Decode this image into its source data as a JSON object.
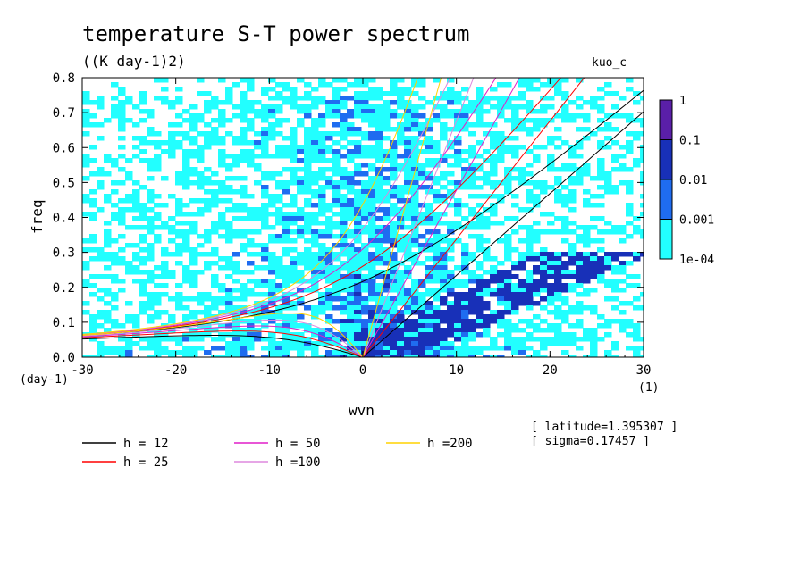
{
  "chart_data": {
    "type": "heatmap",
    "title": "temperature S-T power spectrum",
    "subtitle": "((K day-1)2)",
    "tag": "kuo_c",
    "xlabel": "wvn",
    "ylabel": "freq",
    "x_unit": "(1)",
    "y_unit": "(day-1)",
    "xlim": [
      -30,
      30
    ],
    "ylim": [
      0,
      0.8
    ],
    "x_ticks": [
      "-30",
      "-20",
      "-10",
      "0",
      "10",
      "20",
      "30"
    ],
    "y_ticks": [
      "0.0",
      "0.1",
      "0.2",
      "0.3",
      "0.4",
      "0.5",
      "0.6",
      "0.7",
      "0.8"
    ],
    "colorbar": {
      "labels": [
        "1",
        "0.1",
        "0.01",
        "0.001",
        "1e-04"
      ],
      "levels": [
        1,
        0.1,
        0.01,
        0.001,
        0.0001
      ],
      "colors": [
        "#5a1fa8",
        "#1830b8",
        "#1f6cf0",
        "#22ffff"
      ]
    },
    "legend": [
      {
        "label": "h = 12",
        "color": "#000000"
      },
      {
        "label": "h = 25",
        "color": "#ff0000"
      },
      {
        "label": "h = 50",
        "color": "#e11fc8"
      },
      {
        "label": "h =100",
        "color": "#dd88dd"
      },
      {
        "label": "h =200",
        "color": "#ffd200"
      }
    ],
    "equivalent_depths": [
      12,
      25,
      50,
      100,
      200
    ],
    "info": [
      "[ latitude=1.395307 ]",
      "[ sigma=0.17457 ]"
    ]
  }
}
